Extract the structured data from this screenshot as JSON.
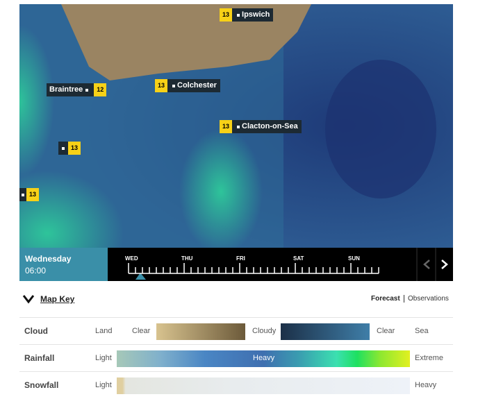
{
  "map": {
    "places": [
      {
        "name": "Ipswich",
        "temp": "13"
      },
      {
        "name": "Braintree",
        "temp": "12"
      },
      {
        "name": "Colchester",
        "temp": "13"
      },
      {
        "name": "Clacton-on-Sea",
        "temp": "13"
      },
      {
        "temp": "13"
      },
      {
        "temp": "13"
      }
    ]
  },
  "timeline": {
    "day": "Wednesday",
    "time": "06:00",
    "days": [
      "WED",
      "THU",
      "FRI",
      "SAT",
      "SUN"
    ]
  },
  "key": {
    "title": "Map Key",
    "tabs": [
      "Forecast",
      "Observations"
    ],
    "rows": [
      {
        "label": "Cloud",
        "texts": [
          "Land",
          "Clear",
          "Cloudy",
          "Clear",
          "Sea"
        ]
      },
      {
        "label": "Rainfall",
        "texts": [
          "Light",
          "Heavy",
          "Extreme"
        ]
      },
      {
        "label": "Snowfall",
        "texts": [
          "Light",
          "Heavy"
        ]
      }
    ]
  }
}
